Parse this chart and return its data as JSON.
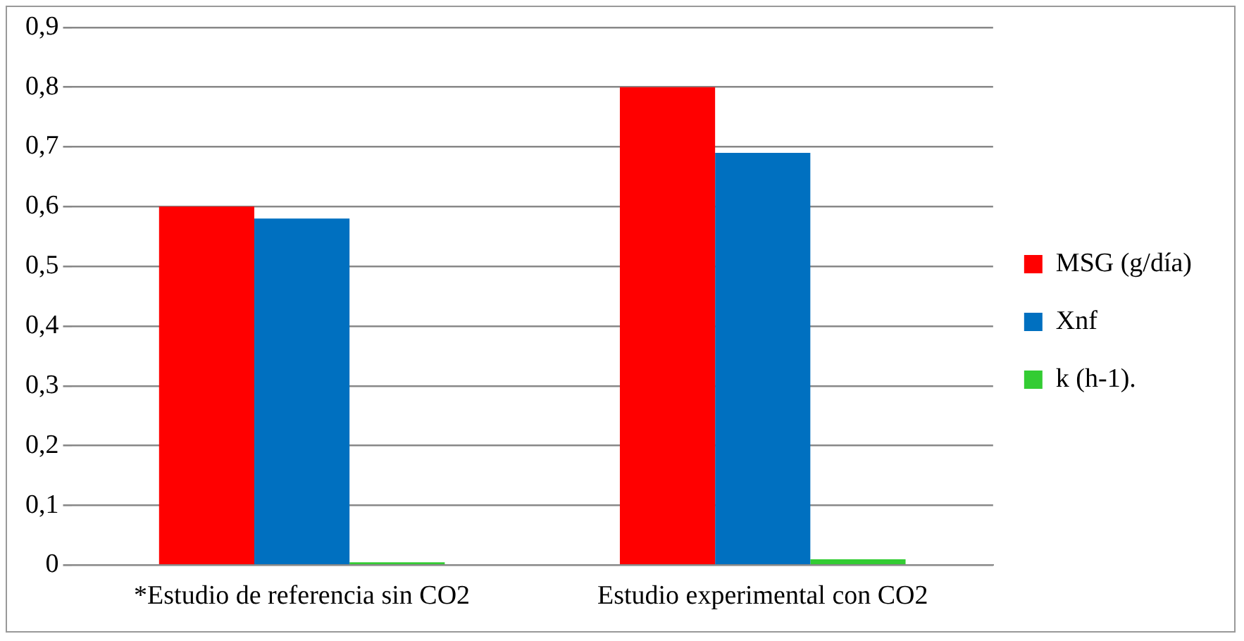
{
  "chart_data": {
    "type": "bar",
    "categories": [
      "*Estudio de referencia sin CO2",
      "Estudio experimental con CO2"
    ],
    "series": [
      {
        "name": "MSG (g/día)",
        "color": "#ff0000",
        "values": [
          0.6,
          0.8
        ]
      },
      {
        "name": "Xnf",
        "color": "#0070c0",
        "values": [
          0.58,
          0.69
        ]
      },
      {
        "name": "k (h-1).",
        "color": "#33cc33",
        "values": [
          0.005,
          0.01
        ]
      }
    ],
    "ylim": [
      0,
      0.9
    ],
    "yticks": [
      {
        "value": 0,
        "label": "0"
      },
      {
        "value": 0.1,
        "label": "0,1"
      },
      {
        "value": 0.2,
        "label": "0,2"
      },
      {
        "value": 0.3,
        "label": "0,3"
      },
      {
        "value": 0.4,
        "label": "0,4"
      },
      {
        "value": 0.5,
        "label": "0,5"
      },
      {
        "value": 0.6,
        "label": "0,6"
      },
      {
        "value": 0.7,
        "label": "0,7"
      },
      {
        "value": 0.8,
        "label": "0,8"
      },
      {
        "value": 0.9,
        "label": "0,9"
      }
    ],
    "grid": "y",
    "legend": "right"
  }
}
